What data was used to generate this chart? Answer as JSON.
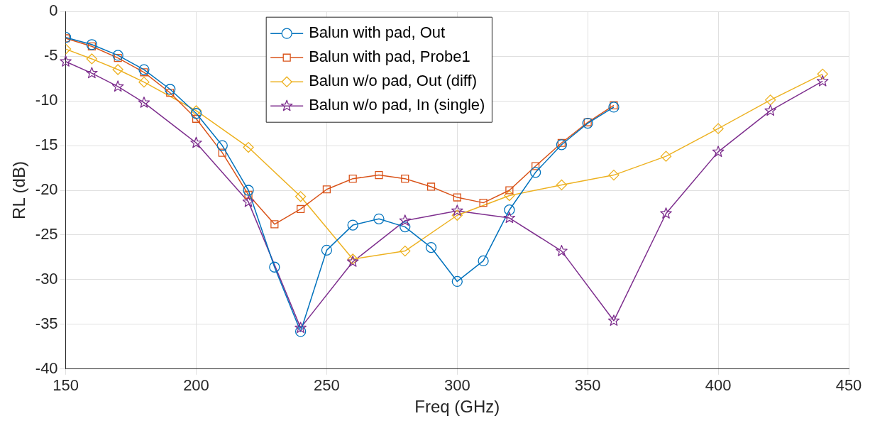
{
  "chart_data": {
    "type": "line",
    "xlabel": "Freq (GHz)",
    "ylabel": "RL (dB)",
    "xlim": [
      150,
      450
    ],
    "xticks": [
      150,
      200,
      250,
      300,
      350,
      400,
      450
    ],
    "ylim": [
      -40,
      0
    ],
    "yticks": [
      -40,
      -35,
      -30,
      -25,
      -20,
      -15,
      -10,
      -5,
      0
    ],
    "grid": true,
    "legend": "top",
    "line_style": "solid",
    "series": [
      {
        "name": "Balun with pad, Out",
        "color": "#0072bd",
        "marker": "circle",
        "x": [
          150,
          160,
          170,
          180,
          190,
          200,
          210,
          220,
          230,
          240,
          250,
          260,
          270,
          280,
          290,
          300,
          310,
          320,
          330,
          340,
          350,
          360
        ],
        "values": [
          -2.9,
          -3.7,
          -4.9,
          -6.5,
          -8.7,
          -11.4,
          -15,
          -20,
          -28.6,
          -35.8,
          -26.7,
          -23.9,
          -23.2,
          -24.1,
          -26.4,
          -30.2,
          -27.9,
          -22.2,
          -18,
          -14.9,
          -12.5,
          -10.7
        ]
      },
      {
        "name": "Balun with pad, Probe1",
        "color": "#d95319",
        "marker": "square",
        "x": [
          150,
          160,
          170,
          180,
          190,
          200,
          210,
          220,
          230,
          240,
          250,
          260,
          270,
          280,
          290,
          300,
          310,
          320,
          330,
          340,
          350,
          360
        ],
        "values": [
          -3,
          -3.9,
          -5.2,
          -6.8,
          -9.1,
          -12,
          -15.8,
          -20.5,
          -23.8,
          -22.1,
          -19.9,
          -18.7,
          -18.3,
          -18.7,
          -19.6,
          -20.8,
          -21.4,
          -20,
          -17.3,
          -14.7,
          -12.4,
          -10.5
        ]
      },
      {
        "name": "Balun w/o pad, Out (diff)",
        "color": "#edb120",
        "marker": "diamond",
        "x": [
          150,
          160,
          170,
          180,
          200,
          220,
          240,
          260,
          280,
          300,
          320,
          340,
          360,
          380,
          400,
          420,
          440
        ],
        "values": [
          -4.2,
          -5.3,
          -6.5,
          -7.9,
          -11.1,
          -15.2,
          -20.7,
          -27.7,
          -26.8,
          -22.8,
          -20.6,
          -19.4,
          -18.3,
          -16.2,
          -13.1,
          -9.9,
          -7
        ]
      },
      {
        "name": "Balun w/o pad, In (single)",
        "color": "#7e2f8e",
        "marker": "star",
        "x": [
          150,
          160,
          170,
          180,
          200,
          220,
          240,
          260,
          280,
          300,
          320,
          340,
          360,
          380,
          400,
          420,
          440
        ],
        "values": [
          -5.6,
          -6.9,
          -8.4,
          -10.2,
          -14.7,
          -21.3,
          -35.4,
          -28,
          -23.4,
          -22.3,
          -23.1,
          -26.8,
          -34.6,
          -22.6,
          -15.7,
          -11.1,
          -7.8
        ]
      }
    ]
  }
}
